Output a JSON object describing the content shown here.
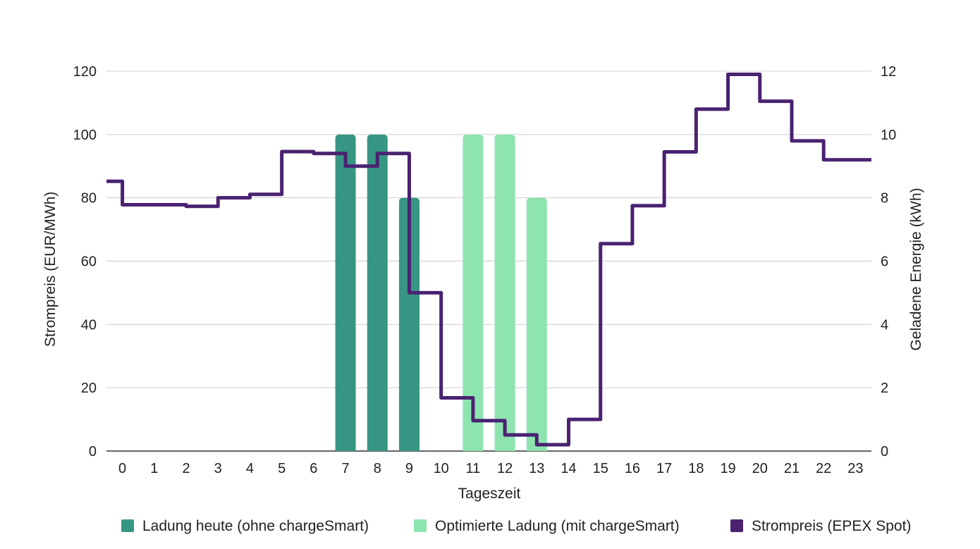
{
  "chart_data": {
    "type": "bar",
    "title": "",
    "x": [
      0,
      1,
      2,
      3,
      4,
      5,
      6,
      7,
      8,
      9,
      10,
      11,
      12,
      13,
      14,
      15,
      16,
      17,
      18,
      19,
      20,
      21,
      22,
      23
    ],
    "xlabel": "Tageszeit",
    "ylabel_left": "Strompreis (EUR/MWh)",
    "ylabel_right": "Geladene Energie (kWh)",
    "ylim_left": [
      0,
      120
    ],
    "yticks_left": [
      0,
      20,
      40,
      60,
      80,
      100,
      120
    ],
    "ylim_right": [
      0,
      12
    ],
    "yticks_right": [
      0,
      2,
      4,
      6,
      8,
      10,
      12
    ],
    "grid": true,
    "legend_position": "bottom",
    "series": [
      {
        "name": "Ladung heute (ohne chargeSmart)",
        "kind": "bar",
        "axis": "right",
        "color": "#379683",
        "values": [
          0,
          0,
          0,
          0,
          0,
          0,
          0,
          10,
          10,
          8,
          0,
          0,
          0,
          0,
          0,
          0,
          0,
          0,
          0,
          0,
          0,
          0,
          0,
          0
        ]
      },
      {
        "name": "Optimierte Ladung (mit chargeSmart)",
        "kind": "bar",
        "axis": "right",
        "color": "#8ee4af",
        "values": [
          0,
          0,
          0,
          0,
          0,
          0,
          0,
          0,
          0,
          0,
          0,
          10,
          10,
          8,
          0,
          0,
          0,
          0,
          0,
          0,
          0,
          0,
          0,
          0
        ]
      },
      {
        "name": "Strompreis (EPEX Spot)",
        "kind": "step-line",
        "axis": "left",
        "color": "#4a2271",
        "values": [
          85.2,
          77.8,
          77.8,
          77.3,
          80.0,
          81.1,
          94.6,
          94.0,
          90.0,
          94.0,
          50.0,
          16.8,
          9.6,
          5.1,
          2.0,
          10.0,
          65.5,
          77.5,
          94.5,
          108.0,
          119.0,
          110.5,
          98.0,
          92.0
        ]
      }
    ]
  }
}
